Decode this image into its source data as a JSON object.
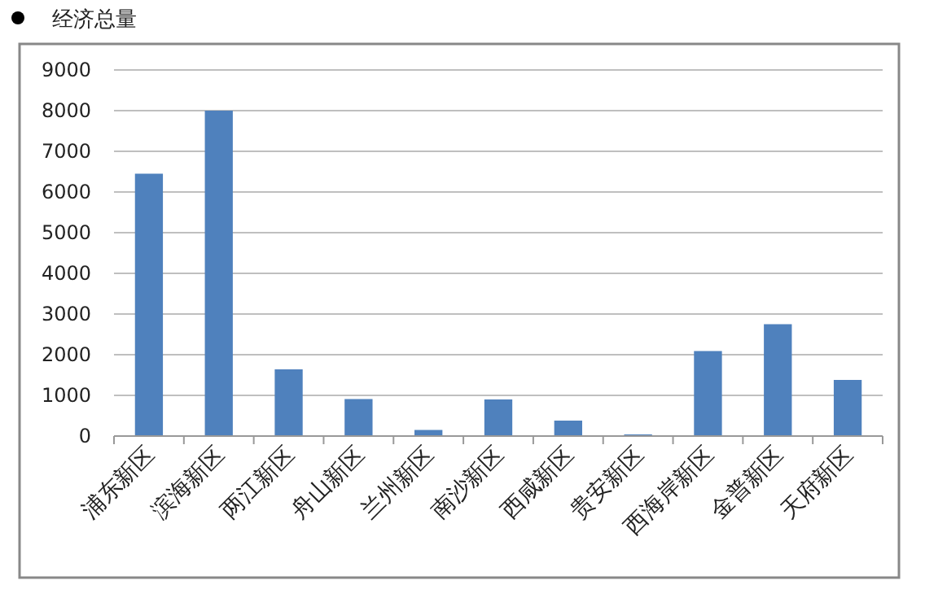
{
  "chart_data": {
    "type": "bar",
    "title": "经济总量",
    "categories": [
      "浦东新区",
      "滨海新区",
      "两江新区",
      "舟山新区",
      "兰州新区",
      "南沙新区",
      "西咸新区",
      "贵安新区",
      "西海岸新区",
      "金普新区",
      "天府新区"
    ],
    "values": [
      6450,
      8000,
      1640,
      910,
      150,
      900,
      380,
      40,
      2090,
      2750,
      1380
    ],
    "color": "#4f81bd",
    "ylim": [
      0,
      9000
    ],
    "yticks": [
      0,
      1000,
      2000,
      3000,
      4000,
      5000,
      6000,
      7000,
      8000,
      9000
    ],
    "grid": "y"
  }
}
